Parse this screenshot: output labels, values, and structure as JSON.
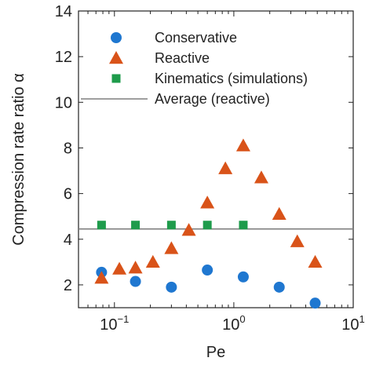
{
  "chart_data": {
    "type": "scatter",
    "xlabel": "Pe",
    "ylabel": "Compression rate ratio α",
    "xscale": "log",
    "xlim": [
      0.05,
      10
    ],
    "ylim": [
      1,
      14
    ],
    "x_ticks": [
      {
        "value": 0.1,
        "base": "10",
        "exp": "−1"
      },
      {
        "value": 1,
        "base": "10",
        "exp": "0"
      },
      {
        "value": 10,
        "base": "10",
        "exp": "1"
      }
    ],
    "y_ticks": [
      2,
      4,
      6,
      8,
      10,
      12,
      14
    ],
    "grid": false,
    "legend_position": "top-right",
    "series": [
      {
        "name": "Conservative",
        "marker": "circle",
        "color": "#1f77d0",
        "points": [
          [
            0.078,
            2.55
          ],
          [
            0.15,
            2.15
          ],
          [
            0.3,
            1.9
          ],
          [
            0.6,
            2.65
          ],
          [
            1.2,
            2.35
          ],
          [
            2.4,
            1.9
          ],
          [
            4.8,
            1.2
          ]
        ]
      },
      {
        "name": "Reactive",
        "marker": "triangle",
        "color": "#d95319",
        "points": [
          [
            0.078,
            2.3
          ],
          [
            0.11,
            2.7
          ],
          [
            0.15,
            2.75
          ],
          [
            0.21,
            3.0
          ],
          [
            0.3,
            3.6
          ],
          [
            0.42,
            4.4
          ],
          [
            0.6,
            5.6
          ],
          [
            0.85,
            7.1
          ],
          [
            1.2,
            8.1
          ],
          [
            1.7,
            6.7
          ],
          [
            2.4,
            5.1
          ],
          [
            3.4,
            3.9
          ],
          [
            4.8,
            3.0
          ]
        ]
      },
      {
        "name": "Kinematics (simulations)",
        "marker": "square",
        "color": "#1e9b4b",
        "points": [
          [
            0.078,
            4.62
          ],
          [
            0.15,
            4.62
          ],
          [
            0.3,
            4.62
          ],
          [
            0.6,
            4.62
          ],
          [
            1.2,
            4.62
          ]
        ]
      }
    ],
    "reference_line": {
      "name": "Average (reactive)",
      "y": 4.45,
      "color": "#7f7f7f"
    }
  }
}
